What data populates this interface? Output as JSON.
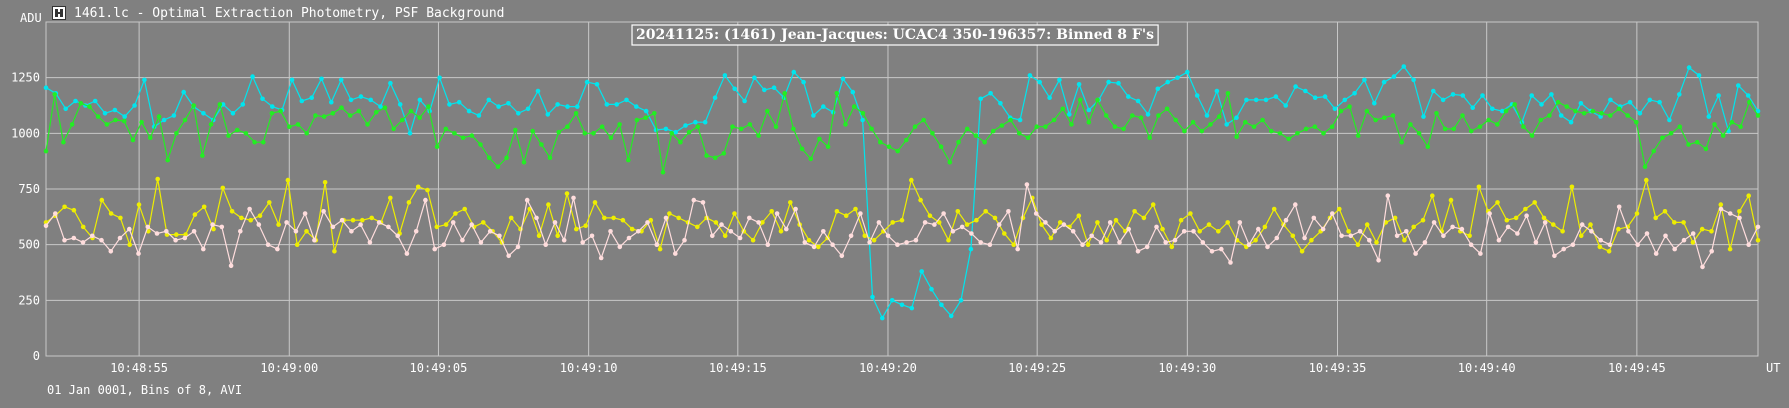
{
  "window": {
    "title": "1461.lc - Optimal Extraction Photometry, PSF Background"
  },
  "footer": {
    "text": "01 Jan 0001, Bins of 8, AVI"
  },
  "chart_data": {
    "type": "line",
    "title": "20241125: (1461) Jean-Jacques: UCAC4 350-196357: Binned 8 F's",
    "ylabel": "ADU",
    "xlabel": "UT",
    "ylim": [
      0,
      1500
    ],
    "yticks": [
      0,
      250,
      500,
      750,
      1000,
      1250
    ],
    "xlim": [
      0,
      171
    ],
    "xticks": [
      {
        "label": "10:48:55",
        "pos": 9.3
      },
      {
        "label": "10:49:00",
        "pos": 24.3
      },
      {
        "label": "10:49:05",
        "pos": 39.2
      },
      {
        "label": "10:49:10",
        "pos": 54.2
      },
      {
        "label": "10:49:15",
        "pos": 69.1
      },
      {
        "label": "10:49:20",
        "pos": 84.1
      },
      {
        "label": "10:49:25",
        "pos": 99.0
      },
      {
        "label": "10:49:30",
        "pos": 114.0
      },
      {
        "label": "10:49:35",
        "pos": 129.0
      },
      {
        "label": "10:49:40",
        "pos": 143.9
      },
      {
        "label": "10:49:45",
        "pos": 158.9
      }
    ],
    "grid": true,
    "series": [
      {
        "color": "#00e5ee",
        "values": [
          1205,
          1180,
          1110,
          1145,
          1125,
          1145,
          1090,
          1105,
          1075,
          1125,
          1240,
          1030,
          1060,
          1080,
          1185,
          1120,
          1090,
          1060,
          1130,
          1090,
          1130,
          1255,
          1155,
          1120,
          1105,
          1240,
          1145,
          1160,
          1245,
          1140,
          1240,
          1150,
          1165,
          1150,
          1120,
          1225,
          1130,
          1000,
          1150,
          1100,
          1250,
          1130,
          1140,
          1100,
          1080,
          1150,
          1120,
          1135,
          1090,
          1110,
          1190,
          1085,
          1130,
          1120,
          1120,
          1230,
          1220,
          1130,
          1130,
          1150,
          1120,
          1100,
          1015,
          1020,
          1005,
          1035,
          1050,
          1050,
          1160,
          1260,
          1200,
          1145,
          1250,
          1195,
          1205,
          1160,
          1275,
          1230,
          1080,
          1120,
          1095,
          1245,
          1185,
          1060,
          265,
          170,
          250,
          230,
          215,
          380,
          300,
          230,
          180,
          250,
          480,
          1155,
          1180,
          1135,
          1070,
          1060,
          1260,
          1230,
          1160,
          1240,
          1085,
          1220,
          1105,
          1150,
          1230,
          1225,
          1165,
          1145,
          1085,
          1200,
          1230,
          1250,
          1275,
          1170,
          1080,
          1190,
          1040,
          1070,
          1150,
          1150,
          1150,
          1165,
          1125,
          1210,
          1190,
          1160,
          1165,
          1110,
          1150,
          1180,
          1240,
          1135,
          1230,
          1255,
          1300,
          1240,
          1075,
          1190,
          1150,
          1175,
          1170,
          1115,
          1170,
          1110,
          1100,
          1130,
          1050,
          1170,
          1130,
          1175,
          1080,
          1050,
          1135,
          1100,
          1075,
          1150,
          1120,
          1140,
          1090,
          1150,
          1140,
          1060,
          1175,
          1295,
          1260,
          1075,
          1170,
          1010,
          1215,
          1170,
          1100
        ]
      },
      {
        "color": "#22ee22",
        "values": [
          920,
          1175,
          960,
          1040,
          1135,
          1120,
          1075,
          1040,
          1060,
          1055,
          970,
          1050,
          980,
          1075,
          880,
          1000,
          1060,
          1125,
          900,
          1040,
          1130,
          990,
          1015,
          1000,
          960,
          960,
          1090,
          1100,
          1030,
          1040,
          1000,
          1080,
          1075,
          1090,
          1115,
          1080,
          1100,
          1040,
          1095,
          1115,
          1020,
          1060,
          1100,
          1070,
          1120,
          940,
          1020,
          1000,
          980,
          990,
          950,
          890,
          850,
          890,
          1015,
          870,
          1010,
          950,
          890,
          1005,
          1030,
          1090,
          1000,
          1000,
          1030,
          980,
          1040,
          880,
          1060,
          1070,
          1090,
          825,
          1000,
          960,
          1005,
          1030,
          900,
          890,
          910,
          1030,
          1020,
          1040,
          990,
          1100,
          1030,
          1180,
          1020,
          930,
          885,
          975,
          940,
          1180,
          1040,
          1120,
          1090,
          1020,
          960,
          940,
          920,
          970,
          1030,
          1060,
          1000,
          940,
          870,
          960,
          1020,
          990,
          960,
          1010,
          1035,
          1060,
          1000,
          980,
          1030,
          1030,
          1060,
          1110,
          1040,
          1150,
          1050,
          1150,
          1080,
          1030,
          1020,
          1080,
          1070,
          980,
          1080,
          1110,
          1060,
          1010,
          1050,
          1010,
          1040,
          1075,
          1180,
          985,
          1050,
          1030,
          1060,
          1010,
          1000,
          975,
          1000,
          1020,
          1030,
          1000,
          1030,
          1100,
          1120,
          990,
          1100,
          1060,
          1070,
          1080,
          960,
          1040,
          1000,
          940,
          1090,
          1020,
          1020,
          1080,
          1010,
          1030,
          1060,
          1040,
          1100,
          1130,
          1030,
          990,
          1060,
          1080,
          1140,
          1120,
          1100,
          1090,
          1100,
          1090,
          1080,
          1110,
          1080,
          1050,
          850,
          920,
          980,
          1000,
          1030,
          950,
          960,
          930,
          1040,
          990,
          1050,
          1030,
          1140,
          1080
        ]
      },
      {
        "color": "#eeee00",
        "values": [
          600,
          630,
          670,
          655,
          580,
          530,
          700,
          640,
          620,
          500,
          680,
          560,
          795,
          545,
          545,
          545,
          635,
          670,
          570,
          755,
          650,
          620,
          610,
          630,
          690,
          590,
          790,
          500,
          560,
          520,
          780,
          470,
          610,
          610,
          610,
          620,
          600,
          710,
          550,
          690,
          760,
          745,
          580,
          590,
          640,
          660,
          580,
          600,
          560,
          510,
          620,
          570,
          660,
          540,
          680,
          540,
          730,
          570,
          585,
          690,
          620,
          620,
          610,
          570,
          560,
          610,
          480,
          640,
          620,
          600,
          580,
          620,
          600,
          540,
          640,
          560,
          520,
          600,
          650,
          560,
          690,
          590,
          520,
          490,
          530,
          650,
          630,
          660,
          540,
          520,
          560,
          600,
          610,
          790,
          700,
          630,
          600,
          520,
          650,
          590,
          610,
          650,
          620,
          550,
          500,
          620,
          710,
          590,
          530,
          600,
          580,
          630,
          500,
          600,
          520,
          610,
          560,
          650,
          620,
          680,
          570,
          490,
          610,
          640,
          560,
          590,
          560,
          600,
          520,
          490,
          520,
          580,
          660,
          590,
          540,
          470,
          520,
          560,
          620,
          660,
          560,
          500,
          590,
          510,
          600,
          620,
          520,
          580,
          610,
          720,
          560,
          700,
          560,
          540,
          760,
          650,
          690,
          610,
          620,
          660,
          690,
          620,
          590,
          560,
          760,
          540,
          590,
          490,
          470,
          570,
          580,
          640,
          790,
          620,
          650,
          600,
          600,
          510,
          570,
          560,
          680,
          480,
          650,
          720,
          520
        ]
      },
      {
        "color": "#ffdddd",
        "values": [
          585,
          640,
          520,
          530,
          510,
          540,
          520,
          470,
          530,
          570,
          460,
          580,
          550,
          560,
          520,
          530,
          560,
          480,
          590,
          580,
          405,
          560,
          660,
          590,
          500,
          480,
          600,
          560,
          640,
          520,
          650,
          580,
          610,
          560,
          590,
          510,
          600,
          580,
          540,
          460,
          560,
          700,
          480,
          500,
          600,
          520,
          590,
          510,
          560,
          540,
          450,
          490,
          700,
          620,
          500,
          600,
          520,
          710,
          510,
          540,
          440,
          560,
          490,
          530,
          560,
          600,
          500,
          620,
          460,
          520,
          700,
          690,
          540,
          590,
          560,
          530,
          620,
          600,
          500,
          640,
          570,
          660,
          510,
          490,
          560,
          500,
          450,
          540,
          640,
          510,
          600,
          540,
          500,
          510,
          520,
          600,
          590,
          640,
          560,
          580,
          550,
          510,
          500,
          590,
          650,
          480,
          770,
          640,
          600,
          560,
          590,
          560,
          500,
          540,
          510,
          600,
          510,
          570,
          470,
          490,
          580,
          510,
          520,
          560,
          560,
          510,
          470,
          480,
          420,
          600,
          500,
          570,
          490,
          530,
          610,
          680,
          530,
          620,
          570,
          640,
          540,
          540,
          560,
          520,
          430,
          720,
          540,
          560,
          460,
          510,
          600,
          540,
          580,
          570,
          500,
          460,
          640,
          520,
          580,
          550,
          630,
          510,
          600,
          450,
          480,
          500,
          590,
          560,
          520,
          500,
          670,
          560,
          500,
          550,
          460,
          540,
          480,
          520,
          550,
          400,
          470,
          660,
          640,
          620,
          500,
          580
        ]
      }
    ]
  }
}
